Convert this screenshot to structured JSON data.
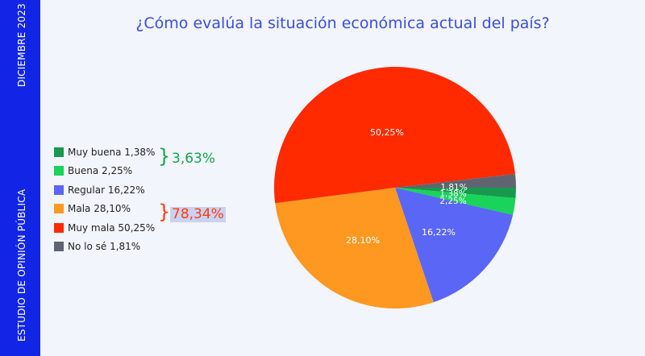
{
  "sidebar": {
    "top_text": "DICIEMBRE 2023",
    "bottom_text": "ESTUDIO DE OPINIÓN PÚBLICA"
  },
  "colors": {
    "sidebar": "#1225e6",
    "title": "#3a4ee0",
    "positive_summary": "#12a54a",
    "negative_summary": "#ff3a10"
  },
  "summary": {
    "positive": "3,63%",
    "negative": "78,34%",
    "brace": "}"
  },
  "chart_data": {
    "type": "pie",
    "title": "¿Cómo evalúa la situación económica actual del país?",
    "legend_position": "left",
    "slices": [
      {
        "label": "Muy buena",
        "legend": "Muy buena 1,38%",
        "value": 1.38,
        "data_label": "1,38%",
        "color": "#179a4d"
      },
      {
        "label": "Buena",
        "legend": "Buena 2,25%",
        "value": 2.25,
        "data_label": "2,25%",
        "color": "#19d35a"
      },
      {
        "label": "Regular",
        "legend": "Regular 16,22%",
        "value": 16.22,
        "data_label": "16,22%",
        "color": "#5a66f5"
      },
      {
        "label": "Mala",
        "legend": "Mala 28,10%",
        "value": 28.1,
        "data_label": "28,10%",
        "color": "#ff9820"
      },
      {
        "label": "Muy mala",
        "legend": "Muy mala 50,25%",
        "value": 50.25,
        "data_label": "50,25%",
        "color": "#ff2a00"
      },
      {
        "label": "No lo sé",
        "legend": "No lo sé 1,81%",
        "value": 1.81,
        "data_label": "1,81%",
        "color": "#5f6470"
      }
    ]
  }
}
